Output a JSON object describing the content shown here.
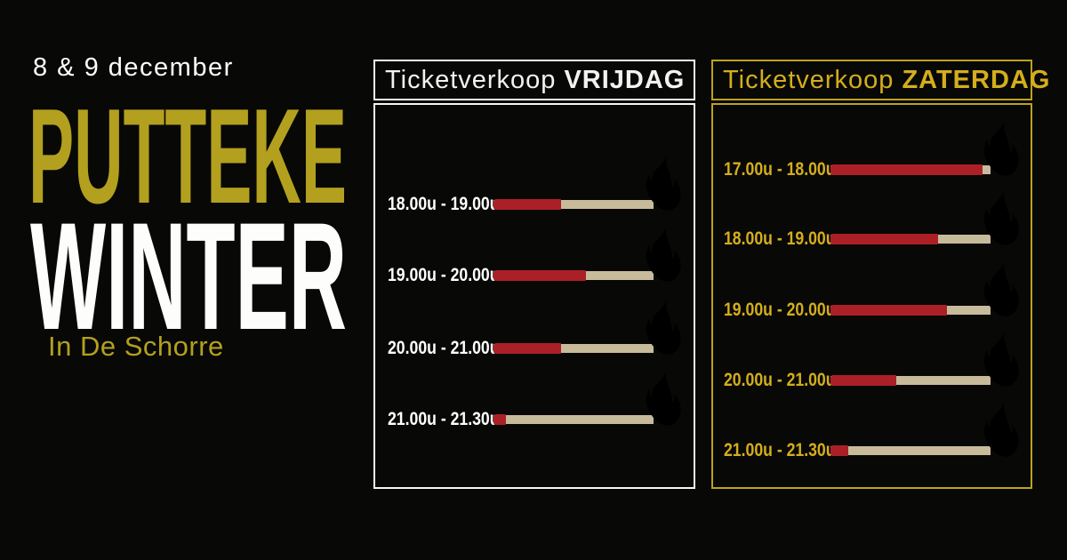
{
  "event": {
    "dates": "8 & 9 december",
    "title_line1": "PUTTEKE",
    "title_line2": "WINTER",
    "venue": "In De Schorre"
  },
  "colors": {
    "background": "#080806",
    "gold_dark": "#b3a01e",
    "gold_bright": "#d4ae1c",
    "gold_border": "#bda21e",
    "panel_white": "#f6f6f4",
    "match_red": "#ab2026",
    "match_wood": "#c8bb9c",
    "flame_outer": "#dcae1e",
    "flame_inner": "#c9742f",
    "text_white": "#ffffff"
  },
  "panels": {
    "friday": {
      "header_prefix": "Ticketverkoop",
      "header_day": "VRIJDAG",
      "slots": [
        {
          "label": "18.00u - 19.00u",
          "sold_pct": 42
        },
        {
          "label": "19.00u - 20.00u",
          "sold_pct": 58
        },
        {
          "label": "20.00u - 21.00u",
          "sold_pct": 42
        },
        {
          "label": "21.00u - 21.30u",
          "sold_pct": 8
        }
      ]
    },
    "saturday": {
      "header_prefix": "Ticketverkoop",
      "header_day": "ZATERDAG",
      "slots": [
        {
          "label": "17.00u - 18.00u",
          "sold_pct": 95
        },
        {
          "label": "18.00u - 19.00u",
          "sold_pct": 67
        },
        {
          "label": "19.00u - 20.00u",
          "sold_pct": 73
        },
        {
          "label": "20.00u - 21.00u",
          "sold_pct": 41
        },
        {
          "label": "21.00u - 21.30u",
          "sold_pct": 11
        }
      ]
    }
  },
  "chart_data": [
    {
      "type": "bar",
      "orientation": "horizontal",
      "title": "Ticketverkoop VRIJDAG",
      "categories": [
        "18.00u - 19.00u",
        "19.00u - 20.00u",
        "20.00u - 21.00u",
        "21.00u - 21.30u"
      ],
      "values": [
        42,
        58,
        42,
        8
      ],
      "xlabel": "",
      "ylabel": "",
      "xlim": [
        0,
        100
      ],
      "value_unit": "percent of matchstick colored red (tickets sold)",
      "grid": false,
      "legend": false
    },
    {
      "type": "bar",
      "orientation": "horizontal",
      "title": "Ticketverkoop ZATERDAG",
      "categories": [
        "17.00u - 18.00u",
        "18.00u - 19.00u",
        "19.00u - 20.00u",
        "20.00u - 21.00u",
        "21.00u - 21.30u"
      ],
      "values": [
        95,
        67,
        73,
        41,
        11
      ],
      "xlabel": "",
      "ylabel": "",
      "xlim": [
        0,
        100
      ],
      "value_unit": "percent of matchstick colored red (tickets sold)",
      "grid": false,
      "legend": false
    }
  ]
}
